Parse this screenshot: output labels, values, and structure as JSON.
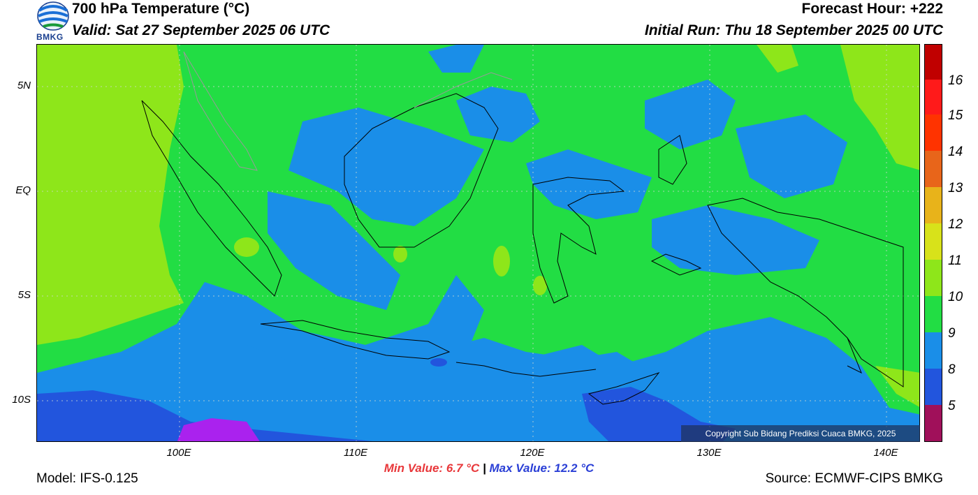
{
  "header": {
    "title": "700 hPa Temperature (°C)",
    "valid": "Valid: Sat 27 September 2025 06 UTC",
    "forecast_hour": "Forecast Hour: +222",
    "initial_run": "Initial Run: Thu 18 September 2025 00 UTC"
  },
  "logo": {
    "text": "BMKG"
  },
  "map": {
    "lat_labels": [
      "5N",
      "EQ",
      "5S",
      "10S"
    ],
    "lon_labels": [
      "100E",
      "110E",
      "120E",
      "130E",
      "140E"
    ],
    "lat_values": [
      5,
      0,
      -5,
      -10
    ],
    "lon_values": [
      100,
      110,
      120,
      130,
      140
    ],
    "extent": {
      "lon_min": 92,
      "lon_max": 142,
      "lat_min": -12,
      "lat_max": 7
    },
    "copyright": "Copyright Sub Bidang Prediksi Cuaca BMKG, 2025"
  },
  "colorbar": {
    "labels": [
      "16",
      "15",
      "14",
      "13",
      "12",
      "11",
      "10",
      "9",
      "8",
      "5"
    ],
    "colors": [
      "#c00000",
      "#ff1a1a",
      "#ff3300",
      "#e8651a",
      "#e8b31a",
      "#d8e21a",
      "#8ee61a",
      "#22dd44",
      "#1a8ee8",
      "#2255dd",
      "#aa22ee",
      "#a0105a"
    ]
  },
  "stats": {
    "min": "Min Value: 6.7 °C",
    "separator": "|",
    "max": "Max Value: 12.2 °C"
  },
  "footer": {
    "model": "Model: IFS-0.125",
    "source": "Source: ECMWF-CIPS BMKG"
  }
}
